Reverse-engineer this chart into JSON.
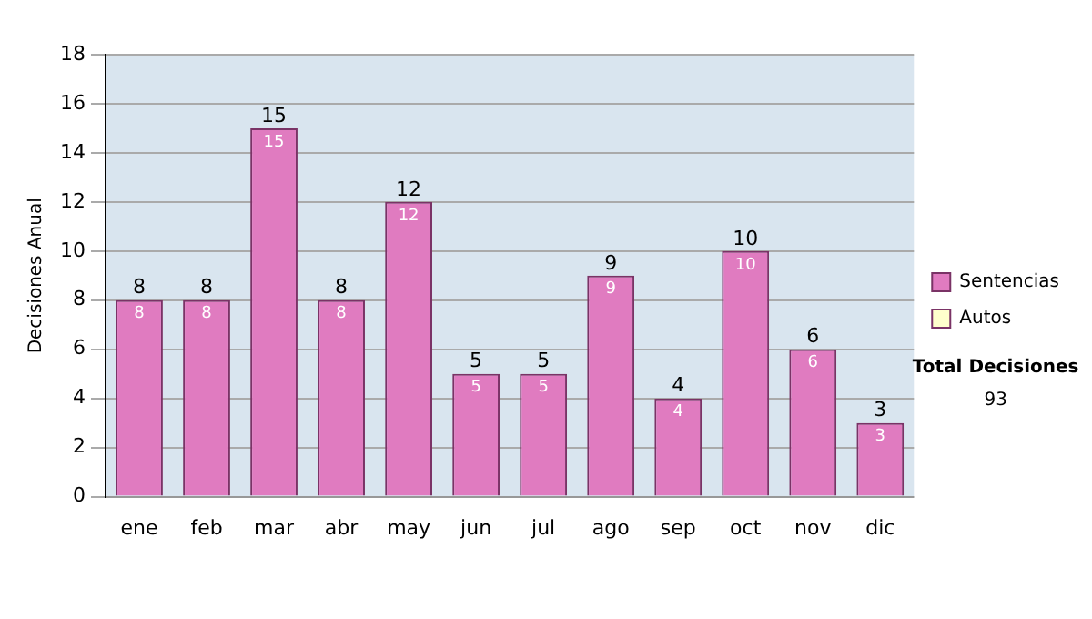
{
  "chart_data": {
    "type": "bar",
    "ylabel": "Decisiones Anual",
    "categories": [
      "ene",
      "feb",
      "mar",
      "abr",
      "may",
      "jun",
      "jul",
      "ago",
      "sep",
      "oct",
      "nov",
      "dic"
    ],
    "series": [
      {
        "name": "Sentencias",
        "color": "#e07bc0",
        "values": [
          8,
          8,
          15,
          8,
          12,
          5,
          5,
          9,
          4,
          10,
          6,
          3
        ],
        "value_labels": [
          "8",
          "8",
          "15",
          "8",
          "12",
          "5",
          "5",
          "9",
          "4",
          "10",
          "6",
          "3"
        ]
      },
      {
        "name": "Autos",
        "color": "#ffffcc",
        "values": [
          0,
          0,
          0,
          0,
          0,
          0,
          0,
          0,
          0,
          0,
          0,
          0
        ]
      }
    ],
    "stacked": true,
    "totals": [
      "8",
      "8",
      "15",
      "8",
      "12",
      "5",
      "5",
      "9",
      "4",
      "10",
      "6",
      "3"
    ],
    "ylim": [
      0,
      18
    ],
    "yticks": [
      0,
      2,
      4,
      6,
      8,
      10,
      12,
      14,
      16,
      18
    ],
    "grid": "y",
    "legend": "right",
    "annotations": [
      "Total Decisiones",
      "93"
    ]
  }
}
